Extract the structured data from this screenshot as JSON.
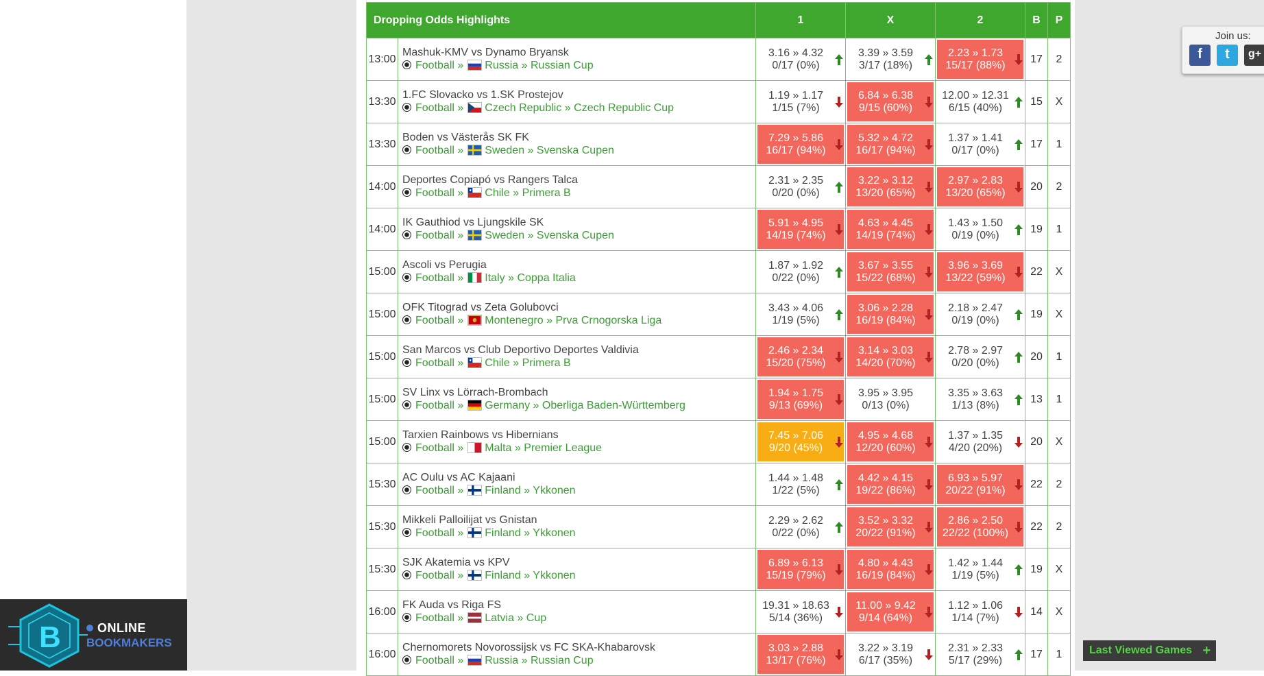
{
  "table": {
    "title": "Dropping Odds Highlights",
    "col_1": "1",
    "col_x": "X",
    "col_2": "2",
    "col_b": "B",
    "col_p": "P"
  },
  "rows": [
    {
      "time": "13:00",
      "match": "Mashuk-KMV vs Dynamo Bryansk",
      "sport": "Football",
      "sep": "»",
      "country": "Russia",
      "cup": "Russian Cup",
      "flag": "russia",
      "o1": {
        "odds": "3.16 » 4.32",
        "pct": "0/17 (0%)",
        "hl": "none",
        "dir": "up"
      },
      "ox": {
        "odds": "3.39 » 3.59",
        "pct": "3/17 (18%)",
        "hl": "none",
        "dir": "up"
      },
      "o2": {
        "odds": "2.23 » 1.73",
        "pct": "15/17 (88%)",
        "hl": "red",
        "dir": "down"
      },
      "b": "17",
      "p": "2"
    },
    {
      "time": "13:30",
      "match": "1.FC Slovacko vs 1.SK Prostejov",
      "sport": "Football",
      "sep": "»",
      "country": "Czech Republic",
      "cup": "Czech Republic Cup",
      "flag": "czech",
      "o1": {
        "odds": "1.19 » 1.17",
        "pct": "1/15 (7%)",
        "hl": "none",
        "dir": "down"
      },
      "ox": {
        "odds": "6.84 » 6.38",
        "pct": "9/15 (60%)",
        "hl": "red",
        "dir": "down"
      },
      "o2": {
        "odds": "12.00 » 12.31",
        "pct": "6/15 (40%)",
        "hl": "none",
        "dir": "up"
      },
      "b": "15",
      "p": "X"
    },
    {
      "time": "13:30",
      "match": "Boden vs Västerås SK FK",
      "sport": "Football",
      "sep": "»",
      "country": "Sweden",
      "cup": "Svenska Cupen",
      "flag": "sweden",
      "o1": {
        "odds": "7.29 » 5.86",
        "pct": "16/17 (94%)",
        "hl": "red",
        "dir": "down"
      },
      "ox": {
        "odds": "5.32 » 4.72",
        "pct": "16/17 (94%)",
        "hl": "red",
        "dir": "down"
      },
      "o2": {
        "odds": "1.37 » 1.41",
        "pct": "0/17 (0%)",
        "hl": "none",
        "dir": "up"
      },
      "b": "17",
      "p": "1"
    },
    {
      "time": "14:00",
      "match": "Deportes Copiapó vs Rangers Talca",
      "sport": "Football",
      "sep": "»",
      "country": "Chile",
      "cup": "Primera B",
      "flag": "chile",
      "o1": {
        "odds": "2.31 » 2.35",
        "pct": "0/20 (0%)",
        "hl": "none",
        "dir": "up"
      },
      "ox": {
        "odds": "3.22 » 3.12",
        "pct": "13/20 (65%)",
        "hl": "red",
        "dir": "down"
      },
      "o2": {
        "odds": "2.97 » 2.83",
        "pct": "13/20 (65%)",
        "hl": "red",
        "dir": "down"
      },
      "b": "20",
      "p": "2"
    },
    {
      "time": "14:00",
      "match": "IK Gauthiod vs Ljungskile SK",
      "sport": "Football",
      "sep": "»",
      "country": "Sweden",
      "cup": "Svenska Cupen",
      "flag": "sweden",
      "o1": {
        "odds": "5.91 » 4.95",
        "pct": "14/19 (74%)",
        "hl": "red",
        "dir": "down"
      },
      "ox": {
        "odds": "4.63 » 4.45",
        "pct": "14/19 (74%)",
        "hl": "red",
        "dir": "down"
      },
      "o2": {
        "odds": "1.43 » 1.50",
        "pct": "0/19 (0%)",
        "hl": "none",
        "dir": "up"
      },
      "b": "19",
      "p": "1"
    },
    {
      "time": "15:00",
      "match": "Ascoli vs Perugia",
      "sport": "Football",
      "sep": "»",
      "country": "Italy",
      "cup": "Coppa Italia",
      "flag": "italy",
      "o1": {
        "odds": "1.87 » 1.92",
        "pct": "0/22 (0%)",
        "hl": "none",
        "dir": "up"
      },
      "ox": {
        "odds": "3.67 » 3.55",
        "pct": "15/22 (68%)",
        "hl": "red",
        "dir": "down"
      },
      "o2": {
        "odds": "3.96 » 3.69",
        "pct": "13/22 (59%)",
        "hl": "red",
        "dir": "down"
      },
      "b": "22",
      "p": "X"
    },
    {
      "time": "15:00",
      "match": "OFK Titograd vs Zeta Golubovci",
      "sport": "Football",
      "sep": "»",
      "country": "Montenegro",
      "cup": "Prva Crnogorska Liga",
      "flag": "montenegro",
      "o1": {
        "odds": "3.43 » 4.06",
        "pct": "1/19 (5%)",
        "hl": "none",
        "dir": "up"
      },
      "ox": {
        "odds": "3.06 » 2.28",
        "pct": "16/19 (84%)",
        "hl": "red",
        "dir": "down"
      },
      "o2": {
        "odds": "2.18 » 2.47",
        "pct": "0/19 (0%)",
        "hl": "none",
        "dir": "up"
      },
      "b": "19",
      "p": "X"
    },
    {
      "time": "15:00",
      "match": "San Marcos vs Club Deportivo Deportes Valdivia",
      "sport": "Football",
      "sep": "»",
      "country": "Chile",
      "cup": "Primera B",
      "flag": "chile",
      "o1": {
        "odds": "2.46 » 2.34",
        "pct": "15/20 (75%)",
        "hl": "red",
        "dir": "down"
      },
      "ox": {
        "odds": "3.14 » 3.03",
        "pct": "14/20 (70%)",
        "hl": "red",
        "dir": "down"
      },
      "o2": {
        "odds": "2.78 » 2.97",
        "pct": "0/20 (0%)",
        "hl": "none",
        "dir": "up"
      },
      "b": "20",
      "p": "1"
    },
    {
      "time": "15:00",
      "match": "SV Linx vs Lörrach-Brombach",
      "sport": "Football",
      "sep": "»",
      "country": "Germany",
      "cup": "Oberliga Baden-Württemberg",
      "flag": "germany",
      "o1": {
        "odds": "1.94 » 1.75",
        "pct": "9/13 (69%)",
        "hl": "red",
        "dir": "down"
      },
      "ox": {
        "odds": "3.95 » 3.95",
        "pct": "0/13 (0%)",
        "hl": "none",
        "dir": "none"
      },
      "o2": {
        "odds": "3.35 » 3.63",
        "pct": "1/13 (8%)",
        "hl": "none",
        "dir": "up"
      },
      "b": "13",
      "p": "1"
    },
    {
      "time": "15:00",
      "match": "Tarxien Rainbows vs Hibernians",
      "sport": "Football",
      "sep": "»",
      "country": "Malta",
      "cup": "Premier League",
      "flag": "malta",
      "o1": {
        "odds": "7.45 » 7.06",
        "pct": "9/20 (45%)",
        "hl": "orange",
        "dir": "down"
      },
      "ox": {
        "odds": "4.95 » 4.68",
        "pct": "12/20 (60%)",
        "hl": "red",
        "dir": "down"
      },
      "o2": {
        "odds": "1.37 » 1.35",
        "pct": "4/20 (20%)",
        "hl": "none",
        "dir": "down"
      },
      "b": "20",
      "p": "X"
    },
    {
      "time": "15:30",
      "match": "AC Oulu vs AC Kajaani",
      "sport": "Football",
      "sep": "»",
      "country": "Finland",
      "cup": "Ykkonen",
      "flag": "finland",
      "o1": {
        "odds": "1.44 » 1.48",
        "pct": "1/22 (5%)",
        "hl": "none",
        "dir": "up"
      },
      "ox": {
        "odds": "4.42 » 4.15",
        "pct": "19/22 (86%)",
        "hl": "red",
        "dir": "down"
      },
      "o2": {
        "odds": "6.93 » 5.97",
        "pct": "20/22 (91%)",
        "hl": "red",
        "dir": "down"
      },
      "b": "22",
      "p": "2"
    },
    {
      "time": "15:30",
      "match": "Mikkeli Palloilijat vs Gnistan",
      "sport": "Football",
      "sep": "»",
      "country": "Finland",
      "cup": "Ykkonen",
      "flag": "finland",
      "o1": {
        "odds": "2.29 » 2.62",
        "pct": "0/22 (0%)",
        "hl": "none",
        "dir": "up"
      },
      "ox": {
        "odds": "3.52 » 3.32",
        "pct": "20/22 (91%)",
        "hl": "red",
        "dir": "down"
      },
      "o2": {
        "odds": "2.86 » 2.50",
        "pct": "22/22 (100%)",
        "hl": "red",
        "dir": "down"
      },
      "b": "22",
      "p": "2"
    },
    {
      "time": "15:30",
      "match": "SJK Akatemia vs KPV",
      "sport": "Football",
      "sep": "»",
      "country": "Finland",
      "cup": "Ykkonen",
      "flag": "finland",
      "o1": {
        "odds": "6.89 » 6.13",
        "pct": "15/19 (79%)",
        "hl": "red",
        "dir": "down"
      },
      "ox": {
        "odds": "4.80 » 4.43",
        "pct": "16/19 (84%)",
        "hl": "red",
        "dir": "down"
      },
      "o2": {
        "odds": "1.42 » 1.44",
        "pct": "1/19 (5%)",
        "hl": "none",
        "dir": "up"
      },
      "b": "19",
      "p": "X"
    },
    {
      "time": "16:00",
      "match": "FK Auda vs Riga FS",
      "sport": "Football",
      "sep": "»",
      "country": "Latvia",
      "cup": "Cup",
      "flag": "latvia",
      "o1": {
        "odds": "19.31 » 18.63",
        "pct": "5/14 (36%)",
        "hl": "none",
        "dir": "down"
      },
      "ox": {
        "odds": "11.00 » 9.42",
        "pct": "9/14 (64%)",
        "hl": "red",
        "dir": "down"
      },
      "o2": {
        "odds": "1.12 » 1.06",
        "pct": "1/14 (7%)",
        "hl": "none",
        "dir": "down"
      },
      "b": "14",
      "p": "X"
    },
    {
      "time": "16:00",
      "match": "Chernomorets Novorossijsk vs FC SKA-Khabarovsk",
      "sport": "Football",
      "sep": "»",
      "country": "Russia",
      "cup": "Russian Cup",
      "flag": "russia",
      "o1": {
        "odds": "3.03 » 2.88",
        "pct": "13/17 (76%)",
        "hl": "red",
        "dir": "down"
      },
      "ox": {
        "odds": "3.22 » 3.19",
        "pct": "6/17 (35%)",
        "hl": "none",
        "dir": "down"
      },
      "o2": {
        "odds": "2.31 » 2.33",
        "pct": "5/17 (29%)",
        "hl": "none",
        "dir": "up"
      },
      "b": "17",
      "p": "1"
    }
  ],
  "colors": {
    "header_green": "#3fa62e",
    "highlight_red": "#f3665b",
    "highlight_orange": "#f7ad13",
    "link_green": "#3aa033",
    "arrow_up": "#2e8b24",
    "arrow_down": "#b22222"
  },
  "social": {
    "label": "Join us:",
    "items": [
      {
        "icon": "facebook-icon",
        "glyph": "f"
      },
      {
        "icon": "twitter-icon",
        "glyph": "t"
      },
      {
        "icon": "google-plus-icon",
        "glyph": "g+"
      }
    ]
  },
  "last_viewed": {
    "label": "Last Viewed Games",
    "plus": "+"
  },
  "logo": {
    "letter": "B",
    "line1": "ONLINE",
    "line2": "BOOKMAKERS"
  }
}
